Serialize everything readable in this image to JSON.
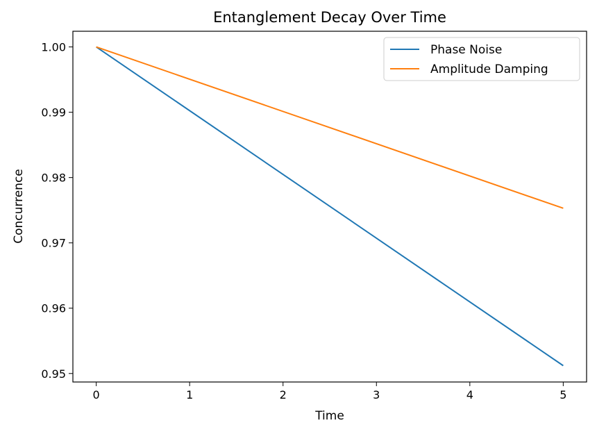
{
  "chart_data": {
    "type": "line",
    "title": "Entanglement Decay Over Time",
    "xlabel": "Time",
    "ylabel": "Concurrence",
    "xlim": [
      -0.25,
      5.25
    ],
    "ylim": [
      0.9487,
      1.0024
    ],
    "xticks": [
      0,
      1,
      2,
      3,
      4,
      5
    ],
    "xtick_labels": [
      "0",
      "1",
      "2",
      "3",
      "4",
      "5"
    ],
    "yticks": [
      0.95,
      0.96,
      0.97,
      0.98,
      0.99,
      1.0
    ],
    "ytick_labels": [
      "0.95",
      "0.96",
      "0.97",
      "0.98",
      "0.99",
      "1.00"
    ],
    "grid": false,
    "legend_position": "top-right",
    "series": [
      {
        "name": "Phase Noise",
        "color": "#1f77b4",
        "x": [
          0,
          5
        ],
        "y": [
          1.0,
          0.9512
        ]
      },
      {
        "name": "Amplitude Damping",
        "color": "#ff7f0e",
        "x": [
          0,
          5
        ],
        "y": [
          1.0,
          0.9753
        ]
      }
    ]
  }
}
